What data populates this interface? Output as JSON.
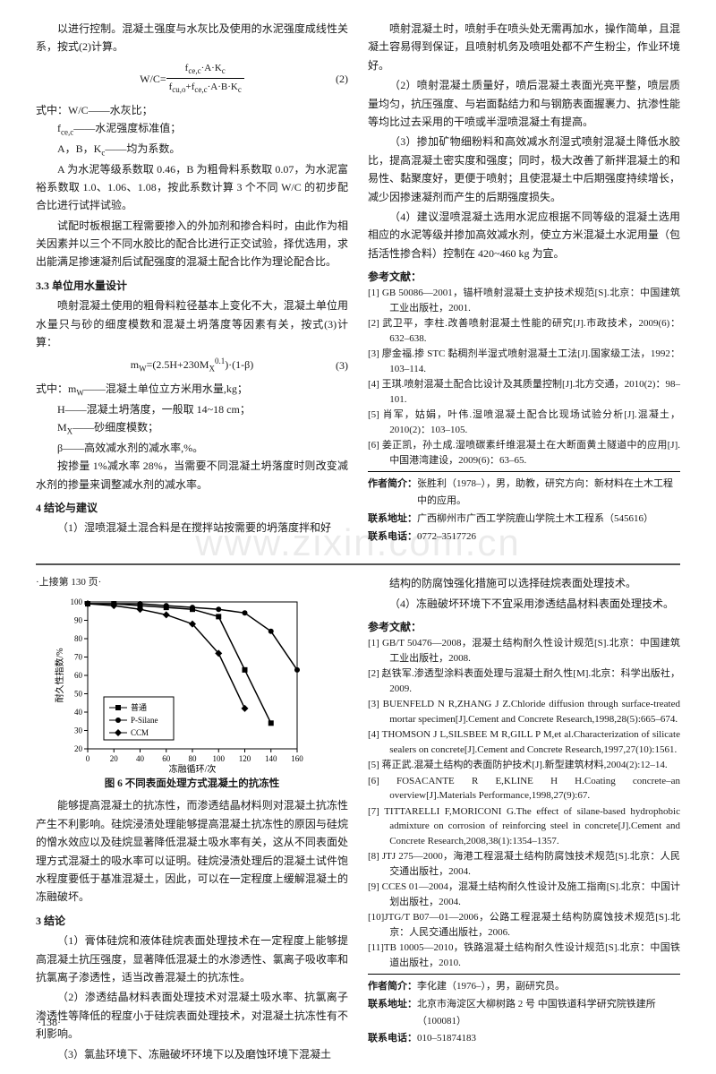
{
  "top": {
    "l": {
      "p1": "以进行控制。混凝土强度与水灰比及使用的水泥强度成线性关系，按式(2)计算。",
      "f2": {
        "lhs": "W/C=",
        "num": "f<sub>ce,c</sub>·A·K<sub>c</sub>",
        "den": "f<sub>cu,o</sub>+f<sub>ce,c</sub>·A·B·K<sub>c</sub>",
        "num2": "(2)"
      },
      "defh": "式中：W/C——水灰比；",
      "def1": "f<sub>ce,c</sub>——水泥强度标准值；",
      "def2": "A，B，K<sub>c</sub>——均为系数。",
      "p2": "A 为水泥等级系数取 0.46，B 为粗骨料系数取 0.07，为水泥富裕系数取 1.0、1.06、1.08，按此系数计算 3 个不同 W/C 的初步配合比进行试拌试验。",
      "p3": "试配时板根据工程需要掺入的外加剂和掺合料时，由此作为相关因素并以三个不同水胶比的配合比进行正交试验，择优选用，求出能满足掺速凝剂后试配强度的混凝土配合比作为理论配合比。",
      "s33": "3.3  单位用水量设计",
      "p4": "喷射混凝土使用的粗骨料粒径基本上变化不大，混凝土单位用水量只与砂的细度模数和混凝土坍落度等因素有关，按式(3)计算：",
      "f3": {
        "body": "m<sub>W</sub>=(2.5H+230M<sub>X</sub><sup>0.1</sup>)·(1-β)",
        "num3": "(3)"
      },
      "def3h": "式中：m<sub>W</sub>——混凝土单位立方米用水量,kg；",
      "def3a": "H——混凝土坍落度，一般取 14~18 cm；",
      "def3b": "M<sub>X</sub>——砂细度模数；",
      "def3c": "β——高效减水剂的减水率,%。",
      "p5": "按掺量 1%减水率 28%，当需要不同混凝土坍落度时则改变减水剂的掺量来调整减水剂的减水率。",
      "s4": "4  结论与建议",
      "p6": "（1）湿喷混凝土混合料是在搅拌站按需要的坍落度拌和好"
    },
    "r": {
      "p1": "喷射混凝土时，喷射手在喷头处无需再加水，操作简单，且混凝土容易得到保证，且喷射机务及喷咀处都不产生粉尘，作业环境好。",
      "p2": "（2）喷射混凝土质量好，喷后混凝土表面光亮平整，喷层质量均匀，抗压强度、与岩面黏结力和与钢筋表面握裹力、抗渗性能等均比过去采用的干喷或半湿喷混凝土有提高。",
      "p3": "（3）掺加矿物细粉料和高效减水剂湿式喷射混凝土降低水胶比，提高混凝土密实度和强度；同时，极大改善了新拌混凝土的和易性、黏聚度好，更便于喷射；且使混凝土中后期强度持续增长，减少因掺速凝剂而产生的后期强度损失。",
      "p4": "（4）建议湿喷混凝土选用水泥应根据不同等级的混凝土选用相应的水泥等级并掺加高效减水剂，使立方米混凝土水泥用量（包括活性掺合料）控制在 420~460 kg 为宜。",
      "refh": "参考文献：",
      "ref": [
        "[1] GB 50086—2001，锚杆喷射混凝土支护技术规范[S].北京：中国建筑工业出版社，2001.",
        "[2] 武卫平，李柱.改善喷射混凝土性能的研究[J].市政技术，2009(6)：632–638.",
        "[3] 廖金福.掺 STC 黏稠剂半湿式喷射混凝土工法[J].国家级工法，1992：103–114.",
        "[4] 王琪.喷射混凝土配合比设计及其质量控制[J].北方交通，2010(2)：98–101.",
        "[5] 肖军，姑娟，叶伟.湿喷混凝土配合比现场试验分析[J].混凝土，2010(2)：103–105.",
        "[6] 姜正凯，孙土成.湿喷碳素纤维混凝土在大断面黄土隧道中的应用[J].中国港湾建设，2009(6)：63–65."
      ],
      "auth": {
        "n": "张胜利（1978–），男，助教，研究方向：新材料在土木工程中的应用。",
        "a": "广西柳州市广西工学院鹿山学院土木工程系（545616）",
        "t": "0772–3517726"
      }
    }
  },
  "bot": {
    "cont": "·上接第 130 页·",
    "chart": {
      "title": "图 6  不同表面处理方式混凝土的抗冻性",
      "xlabel": "冻融循环/次",
      "ylabel": "耐久性指数/%",
      "xlim": [
        0,
        160
      ],
      "ylim": [
        20,
        100
      ],
      "xtick": 20,
      "ytick": 10,
      "legend": [
        "普通",
        "P-Silane",
        "CCM"
      ],
      "series": {
        "普通": {
          "color": "#000",
          "marker": "square",
          "data": [
            [
              0,
              99
            ],
            [
              20,
              99
            ],
            [
              40,
              98
            ],
            [
              60,
              97
            ],
            [
              80,
              96
            ],
            [
              100,
              92
            ],
            [
              120,
              63
            ],
            [
              140,
              34
            ]
          ]
        },
        "P-Silane": {
          "color": "#000",
          "marker": "circle",
          "data": [
            [
              0,
              99
            ],
            [
              20,
              99
            ],
            [
              40,
              99
            ],
            [
              60,
              98
            ],
            [
              80,
              97
            ],
            [
              100,
              96
            ],
            [
              120,
              94
            ],
            [
              140,
              84
            ],
            [
              160,
              63
            ]
          ]
        },
        "CCM": {
          "color": "#000",
          "marker": "diamond",
          "data": [
            [
              0,
              99
            ],
            [
              20,
              98
            ],
            [
              40,
              96
            ],
            [
              60,
              93
            ],
            [
              80,
              88
            ],
            [
              100,
              72
            ],
            [
              120,
              42
            ]
          ]
        }
      }
    },
    "l": {
      "p1": "能够提高混凝土的抗冻性，而渗透结晶材料则对混凝土抗冻性产生不利影响。硅烷浸渍处理能够提高混凝土抗冻性的原因与硅烷的憎水效应以及硅烷显著降低混凝土吸水率有关，这从不同表面处理方式混凝土的吸水率可以证明。硅烷浸渍处理后的混凝土试件饱水程度要低于基准混凝土，因此，可以在一定程度上缓解混凝土的冻融破坏。",
      "s3": "3  结论",
      "p2": "（1）膏体硅烷和液体硅烷表面处理技术在一定程度上能够提高混凝土抗压强度，显著降低混凝土的水渗透性、氯离子吸收率和抗氯离子渗透性，适当改善混凝土的抗冻性。",
      "p3": "（2）渗透结晶材料表面处理技术对混凝土吸水率、抗氯离子渗透性等降低的程度小于硅烷表面处理技术，对混凝土抗冻性有不利影响。",
      "p4": "（3）氯盐环境下、冻融破坏环境下以及磨蚀环境下混凝土"
    },
    "r": {
      "p1": "结构的防腐蚀强化措施可以选择硅烷表面处理技术。",
      "p2": "（4）冻融破坏环境下不宜采用渗透结晶材料表面处理技术。",
      "refh": "参考文献：",
      "ref": [
        "[1] GB/T 50476—2008，混凝土结构耐久性设计规范[S].北京：中国建筑工业出版社，2008.",
        "[2] 赵铁军.渗透型涂料表面处理与混凝土耐久性[M].北京：科学出版社，2009.",
        "[3] BUENFELD N R,ZHANG J Z.Chloride diffusion through surface-treated mortar specimen[J].Cement and Concrete Research,1998,28(5):665–674.",
        "[4] THOMSON J L,SILSBEE M R,GILL P M,et al.Characterization of silicate sealers on concrete[J].Cement and Concrete Research,1997,27(10):1561.",
        "[5] 蒋正武.混凝土结构的表面防护技术[J].新型建筑材料,2004(2):12–14.",
        "[6] FOSACANTE R E,KLINE H H.Coating concrete–an overview[J].Materials Performance,1998,27(9):67.",
        "[7] TITTARELLI F,MORICONI G.The effect of silane-based hydrophobic admixture on corrosion of reinforcing steel in concrete[J].Cement and Concrete Research,2008,38(1):1354–1357.",
        "[8] JTJ 275—2000，海港工程混凝土结构防腐蚀技术规范[S].北京：人民交通出版社，2004.",
        "[9] CCES 01—2004，混凝土结构耐久性设计及施工指南[S].北京：中国计划出版社，2004.",
        "[10]JTG/T B07—01—2006，公路工程混凝土结构防腐蚀技术规范[S].北京：人民交通出版社，2006.",
        "[11]TB 10005—2010，铁路混凝土结构耐久性设计规范[S].北京：中国铁道出版社，2010."
      ],
      "auth": {
        "n": "李化建（1976–），男，副研究员。",
        "a": "北京市海淀区大柳树路 2 号 中国铁道科学研究院铁建所（100081）",
        "t": "010–51874183"
      }
    }
  },
  "labels": {
    "authn": "作者简介：",
    "autha": "联系地址：",
    "autht": "联系电话："
  },
  "pg": "·138·",
  "wm": "www.zixin.com.cn"
}
